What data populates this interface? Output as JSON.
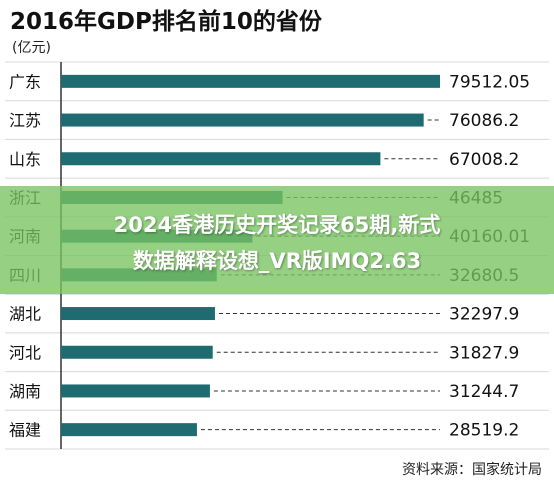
{
  "chart_data": {
    "type": "bar",
    "orientation": "horizontal",
    "title": "2016年GDP排名前10的省份",
    "unit_label": "(亿元)",
    "categories": [
      "广东",
      "江苏",
      "山东",
      "浙江",
      "河南",
      "四川",
      "湖北",
      "河北",
      "湖南",
      "福建"
    ],
    "values": [
      79512.05,
      76086.2,
      67008.2,
      46485,
      40160.01,
      32680.5,
      32297.9,
      31827.9,
      31244.7,
      28519.2
    ],
    "value_labels": [
      "79512.05",
      "76086.2",
      "67008.2",
      "46485",
      "40160.01",
      "32680.5",
      "32297.9",
      "31827.9",
      "31244.7",
      "28519.2"
    ],
    "xlim": [
      0,
      79512.05
    ],
    "source": "资料来源：国家统计局",
    "bar_color": "#1f6b72",
    "grid": false,
    "legend": "none"
  },
  "overlay": {
    "line1": "2024香港历史开奖记录65期,新式",
    "line2": "数据解释设想_VR版IMQ2.63",
    "color": "#78c460"
  }
}
